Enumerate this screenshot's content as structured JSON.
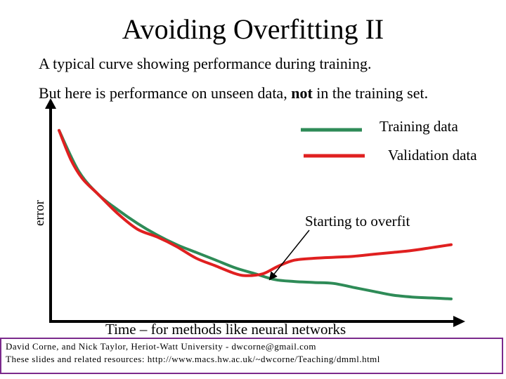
{
  "slide": {
    "title": "Avoiding Overfitting II",
    "subtitle": "A typical curve showing performance during training.",
    "line2_prefix": "But here is performance on unseen data, ",
    "line2_bold": "not",
    "line2_suffix": " in the training set."
  },
  "chart_data": {
    "type": "line",
    "title": "",
    "xlabel": "Time – for methods like neural networks",
    "ylabel": "error",
    "xlim": [
      0,
      100
    ],
    "ylim": [
      0,
      100
    ],
    "grid": false,
    "legend_position": "top-right",
    "series": [
      {
        "name": "Training data",
        "color": "#2e8b57",
        "x": [
          0,
          5,
          10,
          15,
          20,
          25,
          30,
          35,
          40,
          45,
          50,
          55,
          60,
          65,
          70,
          75,
          80,
          85,
          90,
          95,
          100
        ],
        "y": [
          95,
          74,
          62,
          54,
          47,
          41,
          36,
          32,
          28,
          24,
          21,
          18,
          17,
          16.5,
          16,
          14,
          12,
          10,
          9,
          8.5,
          8
        ]
      },
      {
        "name": "Validation data",
        "color": "#e02020",
        "x": [
          0,
          3,
          6,
          10,
          15,
          20,
          25,
          30,
          35,
          40,
          45,
          48,
          52,
          56,
          60,
          65,
          70,
          75,
          80,
          85,
          90,
          95,
          100
        ],
        "y": [
          95,
          80,
          70,
          62,
          52,
          44,
          40,
          35,
          29,
          25,
          21,
          20,
          21,
          25,
          28,
          29,
          29.5,
          30,
          31,
          32,
          33,
          34.5,
          36
        ]
      }
    ],
    "annotation": "Starting to overfit"
  },
  "footer": {
    "line1": "David Corne, and Nick Taylor,  Heriot-Watt University  -  dwcorne@gmail.com",
    "line2": "These slides and related resources:   http://www.macs.hw.ac.uk/~dwcorne/Teaching/dmml.html"
  }
}
